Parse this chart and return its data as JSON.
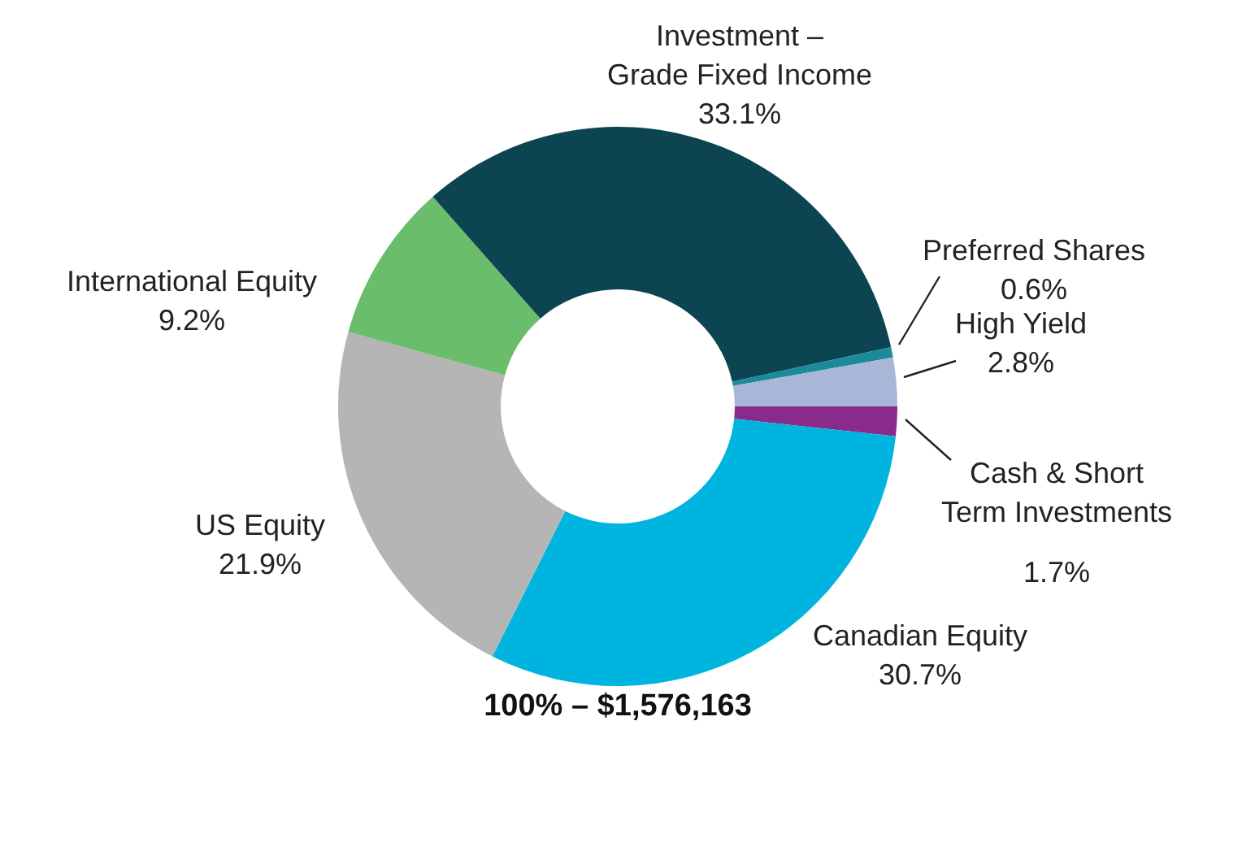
{
  "chart_data": {
    "type": "donut",
    "categories": [
      "Cash & Short\nTerm Investments",
      "Canadian Equity",
      "US Equity",
      "International Equity",
      "Investment –\nGrade Fixed Income",
      "Preferred Shares",
      "High Yield"
    ],
    "values": [
      1.7,
      30.7,
      21.9,
      9.2,
      33.1,
      0.6,
      2.8
    ],
    "colors": [
      "#8a2b8c",
      "#00b4e0",
      "#b5b5b5",
      "#69bd6b",
      "#0c4451",
      "#1b8b9b",
      "#a9b6d8"
    ],
    "value_labels": [
      "1.7%",
      "30.7%",
      "21.9%",
      "9.2%",
      "33.1%",
      "0.6%",
      "2.8%"
    ],
    "title": "100% – $1,576,163"
  }
}
